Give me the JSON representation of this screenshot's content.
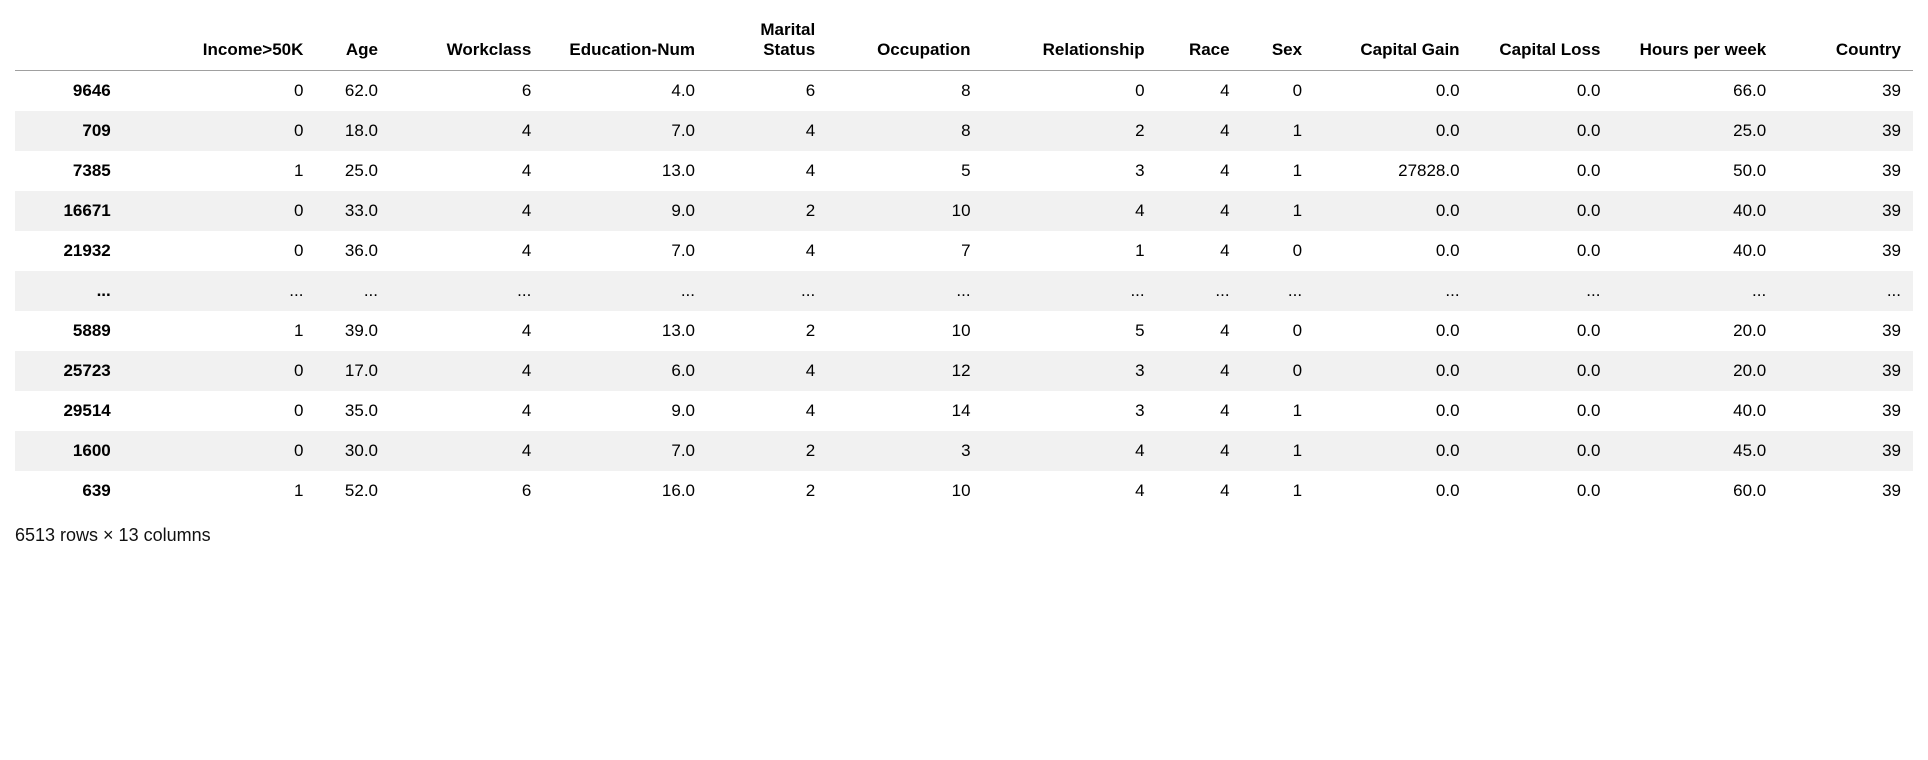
{
  "table": {
    "type": "table",
    "background_color": "#ffffff",
    "row_stripe_color": "#f1f1f1",
    "header_border_color": "#a0a0a0",
    "text_color": "#000000",
    "font_size": 17,
    "header_font_weight": 700,
    "index_font_weight": 700,
    "columns": [
      "Income>50K",
      "Age",
      "Workclass",
      "Education-Num",
      "Marital Status",
      "Occupation",
      "Relationship",
      "Race",
      "Sex",
      "Capital Gain",
      "Capital Loss",
      "Hours per week",
      "Country"
    ],
    "column_alignment": "right",
    "index_values": [
      "9646",
      "709",
      "7385",
      "16671",
      "21932",
      "...",
      "5889",
      "25723",
      "29514",
      "1600",
      "639"
    ],
    "rows": [
      [
        "0",
        "62.0",
        "6",
        "4.0",
        "6",
        "8",
        "0",
        "4",
        "0",
        "0.0",
        "0.0",
        "66.0",
        "39"
      ],
      [
        "0",
        "18.0",
        "4",
        "7.0",
        "4",
        "8",
        "2",
        "4",
        "1",
        "0.0",
        "0.0",
        "25.0",
        "39"
      ],
      [
        "1",
        "25.0",
        "4",
        "13.0",
        "4",
        "5",
        "3",
        "4",
        "1",
        "27828.0",
        "0.0",
        "50.0",
        "39"
      ],
      [
        "0",
        "33.0",
        "4",
        "9.0",
        "2",
        "10",
        "4",
        "4",
        "1",
        "0.0",
        "0.0",
        "40.0",
        "39"
      ],
      [
        "0",
        "36.0",
        "4",
        "7.0",
        "4",
        "7",
        "1",
        "4",
        "0",
        "0.0",
        "0.0",
        "40.0",
        "39"
      ],
      [
        "...",
        "...",
        "...",
        "...",
        "...",
        "...",
        "...",
        "...",
        "...",
        "...",
        "...",
        "...",
        "..."
      ],
      [
        "1",
        "39.0",
        "4",
        "13.0",
        "2",
        "10",
        "5",
        "4",
        "0",
        "0.0",
        "0.0",
        "20.0",
        "39"
      ],
      [
        "0",
        "17.0",
        "4",
        "6.0",
        "4",
        "12",
        "3",
        "4",
        "0",
        "0.0",
        "0.0",
        "20.0",
        "39"
      ],
      [
        "0",
        "35.0",
        "4",
        "9.0",
        "4",
        "14",
        "3",
        "4",
        "1",
        "0.0",
        "0.0",
        "40.0",
        "39"
      ],
      [
        "0",
        "30.0",
        "4",
        "7.0",
        "2",
        "3",
        "4",
        "4",
        "1",
        "0.0",
        "0.0",
        "45.0",
        "39"
      ],
      [
        "1",
        "52.0",
        "6",
        "16.0",
        "2",
        "10",
        "4",
        "4",
        "1",
        "0.0",
        "0.0",
        "60.0",
        "39"
      ]
    ],
    "footer": "6513 rows × 13 columns"
  }
}
